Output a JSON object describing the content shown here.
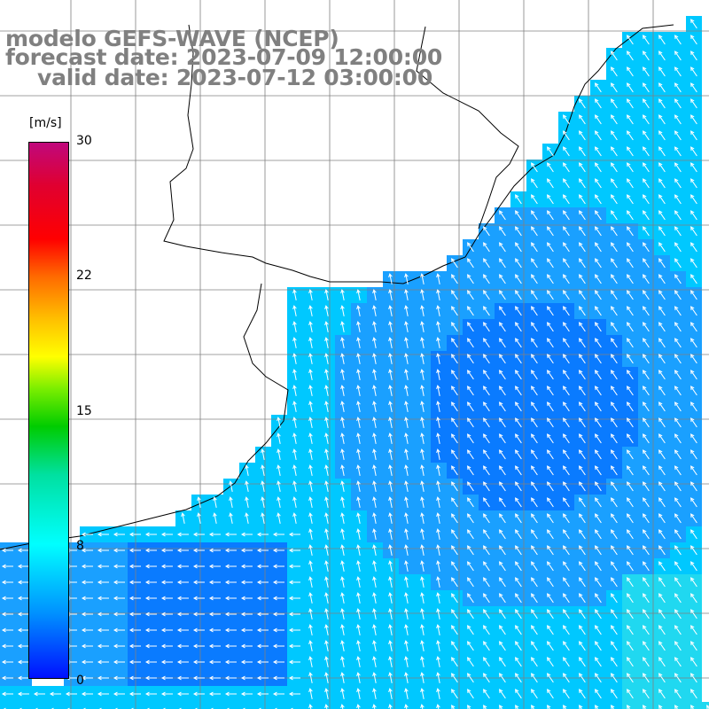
{
  "header": {
    "title_line1": "modelo GEFS-WAVE (NCEP)",
    "title_line2": "forecast date: 2023-07-09 12:00:00",
    "title_line3": "valid date: 2023-07-12 03:00:00"
  },
  "colorbar": {
    "unit": "[m/s]",
    "tick_labels": [
      "30",
      "22",
      "15",
      "8",
      "0"
    ],
    "colors": [
      "#c0087c",
      "#ff0000",
      "#ff6a00",
      "#ffff00",
      "#00cc00",
      "#00ffff",
      "#0090ff",
      "#0010ff"
    ]
  },
  "map": {
    "land_color": "#ffffff",
    "coast_color": "#000000",
    "grid_color": "#808080",
    "ocean_colors": [
      "#00c8ff",
      "#1aa0ff",
      "#0a7bff",
      "#20d8f0",
      "#30e080"
    ],
    "arrow_color": "#ffffff"
  }
}
